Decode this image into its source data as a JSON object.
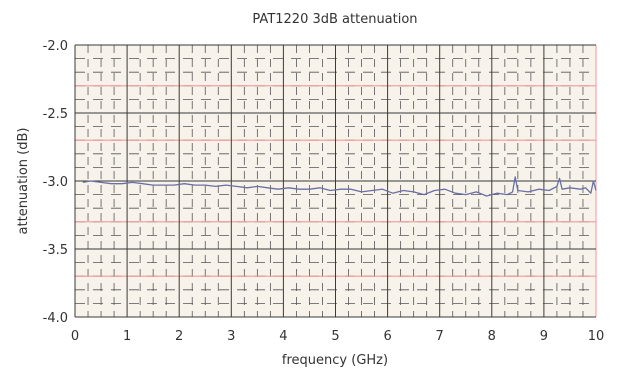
{
  "chart_data": {
    "type": "line",
    "title": "PAT1220 3dB attenuation",
    "xlabel": "frequency (GHz)",
    "ylabel": "attenuation (dB)",
    "xlim": [
      0,
      10
    ],
    "ylim": [
      -4.0,
      -2.0
    ],
    "x_ticks": [
      "0",
      "1",
      "2",
      "3",
      "4",
      "5",
      "6",
      "7",
      "8",
      "9",
      "10"
    ],
    "y_ticks": [
      "-2.0",
      "-2.5",
      "-3.0",
      "-3.5",
      "-4.0"
    ],
    "grid": true,
    "colors": {
      "plot_bg": "#f7f3ea",
      "major_grid": "#3a3a3a",
      "minor_grid": "#555555",
      "red_grid": "#f29a9a",
      "series": "#6a6fa6"
    },
    "series": [
      {
        "x": [
          0.15,
          0.3,
          0.5,
          0.7,
          0.9,
          1.1,
          1.3,
          1.5,
          1.7,
          1.9,
          2.1,
          2.3,
          2.5,
          2.7,
          2.9,
          3.1,
          3.3,
          3.5,
          3.7,
          3.9,
          4.1,
          4.3,
          4.5,
          4.7,
          4.9,
          5.1,
          5.3,
          5.5,
          5.7,
          5.9,
          6.1,
          6.3,
          6.5,
          6.7,
          6.9,
          7.1,
          7.3,
          7.5,
          7.7,
          7.9,
          8.1,
          8.3,
          8.4,
          8.45,
          8.5,
          8.7,
          8.9,
          9.1,
          9.25,
          9.3,
          9.35,
          9.5,
          9.7,
          9.8,
          9.9,
          9.95,
          10.0
        ],
        "values": [
          -3.01,
          -3.0,
          -3.01,
          -3.02,
          -3.02,
          -3.01,
          -3.02,
          -3.03,
          -3.03,
          -3.03,
          -3.02,
          -3.03,
          -3.03,
          -3.04,
          -3.03,
          -3.04,
          -3.05,
          -3.04,
          -3.05,
          -3.06,
          -3.05,
          -3.06,
          -3.06,
          -3.05,
          -3.07,
          -3.06,
          -3.06,
          -3.08,
          -3.07,
          -3.06,
          -3.09,
          -3.07,
          -3.08,
          -3.1,
          -3.07,
          -3.06,
          -3.09,
          -3.1,
          -3.08,
          -3.11,
          -3.09,
          -3.1,
          -3.08,
          -2.97,
          -3.07,
          -3.08,
          -3.06,
          -3.07,
          -3.04,
          -2.98,
          -3.06,
          -3.05,
          -3.06,
          -3.05,
          -3.09,
          -3.0,
          -3.07
        ]
      }
    ]
  }
}
